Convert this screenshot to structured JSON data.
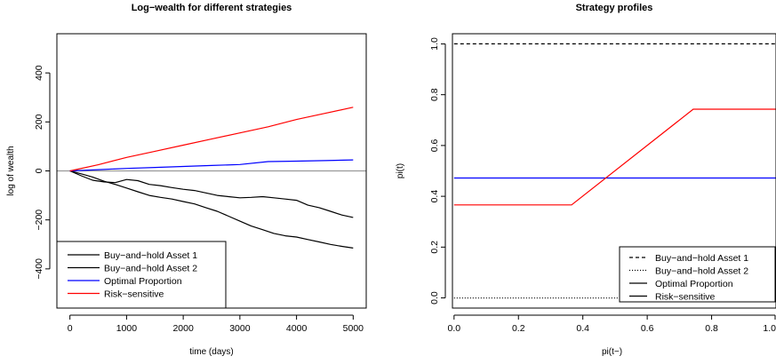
{
  "chart_data": [
    {
      "type": "line",
      "title": "Log−wealth for different strategies",
      "xlabel": "time (days)",
      "ylabel": "log of wealth",
      "xlim": [
        -230,
        5230
      ],
      "ylim": [
        -560,
        560
      ],
      "xticks": [
        0,
        1000,
        2000,
        3000,
        4000,
        5000
      ],
      "xtick_labels": [
        "0",
        "1000",
        "2000",
        "3000",
        "4000",
        "5000"
      ],
      "yticks": [
        -400,
        -200,
        0,
        200,
        400
      ],
      "ytick_labels": [
        "−400",
        "−200",
        "0",
        "200",
        "400"
      ],
      "grid": false,
      "reference_line": {
        "y": 0,
        "color": "#999999"
      },
      "legend_position": "bottom-left",
      "series": [
        {
          "name": "Buy−and−hold Asset 1",
          "color": "#000000",
          "style": "solid",
          "x": [
            0,
            200,
            400,
            600,
            800,
            1000,
            1200,
            1400,
            1600,
            1800,
            2000,
            2200,
            2400,
            2600,
            2800,
            3000,
            3200,
            3400,
            3600,
            3800,
            4000,
            4200,
            4400,
            4600,
            4800,
            5000
          ],
          "values": [
            0,
            -12,
            -25,
            -42,
            -55,
            -70,
            -85,
            -100,
            -108,
            -115,
            -125,
            -135,
            -150,
            -165,
            -185,
            -205,
            -225,
            -240,
            -255,
            -265,
            -270,
            -280,
            -290,
            -300,
            -308,
            -315
          ]
        },
        {
          "name": "Buy−and−hold Asset 2",
          "color": "#000000",
          "style": "solid",
          "x": [
            0,
            200,
            400,
            600,
            800,
            1000,
            1200,
            1400,
            1600,
            1800,
            2000,
            2200,
            2400,
            2600,
            2800,
            3000,
            3200,
            3400,
            3600,
            3800,
            4000,
            4200,
            4400,
            4600,
            4800,
            5000
          ],
          "values": [
            0,
            -20,
            -38,
            -45,
            -48,
            -35,
            -40,
            -55,
            -60,
            -68,
            -75,
            -80,
            -90,
            -100,
            -105,
            -110,
            -108,
            -105,
            -110,
            -115,
            -120,
            -140,
            -150,
            -165,
            -180,
            -190
          ]
        },
        {
          "name": "Optimal Proportion",
          "color": "#0000ff",
          "style": "solid",
          "x": [
            0,
            500,
            1000,
            1500,
            2000,
            2500,
            3000,
            3500,
            4000,
            4500,
            5000
          ],
          "values": [
            0,
            5,
            10,
            14,
            18,
            22,
            26,
            38,
            40,
            42,
            45
          ]
        },
        {
          "name": "Risk−sensitive",
          "color": "#ff0000",
          "style": "solid",
          "x": [
            0,
            500,
            1000,
            1500,
            2000,
            2500,
            3000,
            3500,
            4000,
            4500,
            5000
          ],
          "values": [
            0,
            25,
            55,
            80,
            105,
            130,
            155,
            180,
            210,
            235,
            260
          ]
        }
      ]
    },
    {
      "type": "line",
      "title": "Strategy profiles",
      "xlabel": "pi(t−)",
      "ylabel": "pi(t)",
      "xlim": [
        -0.005,
        1.0
      ],
      "ylim": [
        -0.04,
        1.04
      ],
      "xticks": [
        0,
        0.2,
        0.4,
        0.6,
        0.8,
        1.0
      ],
      "xtick_labels": [
        "0.0",
        "0.2",
        "0.4",
        "0.6",
        "0.8",
        "1.0"
      ],
      "yticks": [
        0,
        0.2,
        0.4,
        0.6,
        0.8,
        1.0
      ],
      "ytick_labels": [
        "0.0",
        "0.2",
        "0.4",
        "0.6",
        "0.8",
        "1.0"
      ],
      "grid": false,
      "legend_position": "bottom-right",
      "series": [
        {
          "name": "Buy−and−hold Asset 1",
          "color": "#000000",
          "style": "dashed",
          "x": [
            0,
            1
          ],
          "values": [
            1,
            1
          ]
        },
        {
          "name": "Buy−and−hold Asset 2",
          "color": "#000000",
          "style": "dotted",
          "x": [
            0,
            1
          ],
          "values": [
            0,
            0
          ]
        },
        {
          "name": "Optimal Proportion",
          "color": "#0000ff",
          "style": "solid",
          "x": [
            0,
            1
          ],
          "values": [
            0.472,
            0.472
          ]
        },
        {
          "name": "Risk−sensitive",
          "color": "#ff0000",
          "style": "solid",
          "x": [
            0,
            0.365,
            0.743,
            1
          ],
          "values": [
            0.366,
            0.366,
            0.743,
            0.743
          ]
        }
      ],
      "legend_colors": [
        "#000000",
        "#000000",
        "#000000",
        "#000000"
      ],
      "legend_styles": [
        "dashed",
        "dotted",
        "solid",
        "solid"
      ]
    }
  ]
}
